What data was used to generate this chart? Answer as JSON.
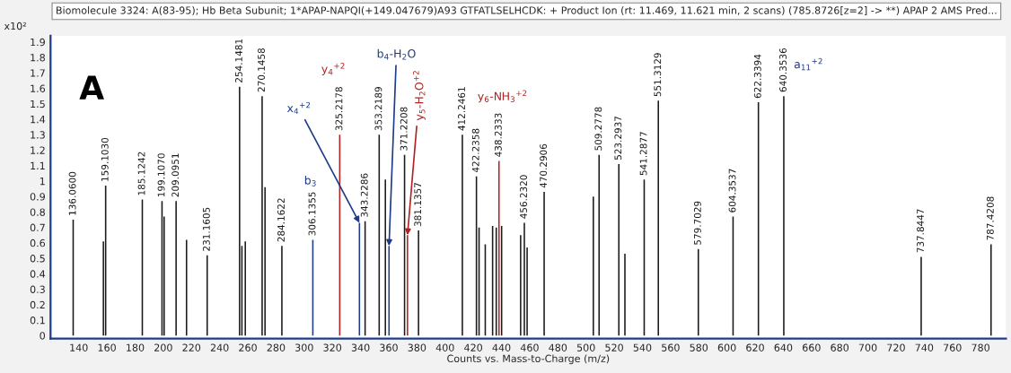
{
  "chart_data": {
    "type": "bar",
    "title": "Biomolecule 3324: A(83-95); Hb Beta Subunit; 1*APAP-NAPQI(+149.047679)A93 GTFATLSELHCDK: + Product Ion (rt: 11.469, 11.621 min, 2 scans) (785.8726[z=2] -> **) APAP 2 AMS Pred...",
    "xlabel": "Counts vs. Mass-to-Charge (m/z)",
    "ylabel": "x10²",
    "x": [
      136.06,
      157.5,
      159.103,
      185.1242,
      199.107,
      200.6,
      209.0951,
      216.5,
      231.1605,
      254.1481,
      255.8,
      258.2,
      270.1458,
      272.2,
      284.1622,
      306.1355,
      325.2178,
      339.2,
      343.2286,
      353.2189,
      357.6,
      360.2,
      371.2208,
      373.3,
      381.1357,
      412.2461,
      422.2358,
      424.1,
      428.5,
      433.7,
      436.3,
      438.2333,
      440.1,
      453.6,
      456.232,
      458.2,
      470.2906,
      505.2,
      509.2778,
      523.2937,
      527.6,
      541.2877,
      551.3129,
      579.7029,
      604.3537,
      622.3394,
      640.3536,
      737.8447,
      787.4208
    ],
    "values": [
      0.75,
      0.61,
      0.97,
      0.88,
      0.87,
      0.77,
      0.87,
      0.62,
      0.52,
      1.61,
      0.58,
      0.61,
      1.55,
      0.96,
      0.58,
      0.62,
      1.3,
      0.73,
      0.74,
      1.3,
      1.01,
      0.58,
      1.17,
      0.65,
      0.68,
      1.3,
      1.03,
      0.7,
      0.59,
      0.71,
      0.7,
      1.13,
      0.71,
      0.65,
      0.73,
      0.57,
      0.93,
      0.9,
      1.17,
      1.11,
      0.53,
      1.01,
      1.52,
      0.56,
      0.77,
      1.51,
      1.55,
      0.51,
      0.59
    ],
    "colors": [
      "#1a1a1a",
      "#1a1a1a",
      "#1a1a1a",
      "#1a1a1a",
      "#1a1a1a",
      "#1a1a1a",
      "#1a1a1a",
      "#1a1a1a",
      "#1a1a1a",
      "#1a1a1a",
      "#1a1a1a",
      "#1a1a1a",
      "#1a1a1a",
      "#1a1a1a",
      "#1a1a1a",
      "#1f3c88",
      "#b22222",
      "#1f3c88",
      "#1a1a1a",
      "#1a1a1a",
      "#1a1a1a",
      "#1f3c88",
      "#1a1a1a",
      "#b22222",
      "#1a1a1a",
      "#1a1a1a",
      "#1a1a1a",
      "#1a1a1a",
      "#1a1a1a",
      "#1a1a1a",
      "#1a1a1a",
      "#b22222",
      "#1a1a1a",
      "#1a1a1a",
      "#1a1a1a",
      "#1a1a1a",
      "#1a1a1a",
      "#1a1a1a",
      "#1a1a1a",
      "#1a1a1a",
      "#1a1a1a",
      "#1a1a1a",
      "#1a1a1a",
      "#1a1a1a",
      "#1a1a1a",
      "#1a1a1a",
      "#1a1a1a",
      "#1a1a1a",
      "#1a1a1a"
    ],
    "annotations": [
      "A",
      "y$_{4}$$^{+2}$",
      {
        "text": "x$_{4}$$^{+2}$",
        "x": 339.2,
        "y": 0.73
      },
      "b$_{3}$",
      {
        "text": "b$_{4}$-H$_{2}$O",
        "x": 360.2,
        "y": 0.58
      },
      {
        "text": "y$_{5}$-H$_{2}$O$^{+2}$",
        "x": 373.3,
        "y": 0.65
      },
      "y$_{6}$-NH$_{3}$$^{+2}$",
      "a$_{11}$$^{+2}$",
      {
        "text": "136.0600",
        "x": 136.06,
        "y": 0.75
      },
      {
        "text": "159.1030",
        "x": 159.103,
        "y": 0.97
      },
      {
        "text": "185.1242",
        "x": 185.1242,
        "y": 0.88
      },
      {
        "text": "199.1070",
        "x": 199.107,
        "y": 0.87
      },
      {
        "text": "209.0951",
        "x": 209.0951,
        "y": 0.87
      },
      {
        "text": "231.1605",
        "x": 231.1605,
        "y": 0.52
      },
      {
        "text": "254.1481",
        "x": 254.1481,
        "y": 1.61
      },
      {
        "text": "270.1458",
        "x": 270.1458,
        "y": 1.55
      },
      {
        "text": "284.1622",
        "x": 284.1622,
        "y": 0.58
      },
      {
        "text": "306.1355",
        "x": 306.1355,
        "y": 0.62
      },
      {
        "text": "325.2178",
        "x": 325.2178,
        "y": 1.3
      },
      {
        "text": "343.2286",
        "x": 343.2286,
        "y": 0.74
      },
      {
        "text": "353.2189",
        "x": 353.2189,
        "y": 1.3
      },
      {
        "text": "371.2208",
        "x": 371.2208,
        "y": 1.17
      },
      {
        "text": "381.1357",
        "x": 381.1357,
        "y": 0.68
      },
      {
        "text": "412.2461",
        "x": 412.2461,
        "y": 1.3
      },
      {
        "text": "422.2358",
        "x": 422.2358,
        "y": 1.03
      },
      {
        "text": "438.2333",
        "x": 438.2333,
        "y": 1.13
      },
      {
        "text": "456.2320",
        "x": 456.232,
        "y": 0.73
      },
      {
        "text": "470.2906",
        "x": 470.2906,
        "y": 0.93
      },
      {
        "text": "509.2778",
        "x": 509.2778,
        "y": 1.17
      },
      {
        "text": "523.2937",
        "x": 523.2937,
        "y": 1.11
      },
      {
        "text": "541.2877",
        "x": 541.2877,
        "y": 1.01
      },
      {
        "text": "551.3129",
        "x": 551.3129,
        "y": 1.52
      },
      {
        "text": "579.7029",
        "x": 579.7029,
        "y": 0.56
      },
      {
        "text": "604.3537",
        "x": 604.3537,
        "y": 0.77
      },
      {
        "text": "622.3394",
        "x": 622.3394,
        "y": 1.51
      },
      {
        "text": "640.3536",
        "x": 640.3536,
        "y": 1.55
      },
      {
        "text": "737.8447",
        "x": 737.8447,
        "y": 0.51
      },
      {
        "text": "787.4208",
        "x": 787.4208,
        "y": 0.59
      }
    ],
    "xlim": [
      120,
      798
    ],
    "ylim": [
      -0.02,
      1.94
    ],
    "xticks": [
      140,
      160,
      180,
      200,
      220,
      240,
      260,
      280,
      300,
      320,
      340,
      360,
      380,
      400,
      420,
      440,
      460,
      480,
      500,
      520,
      540,
      560,
      580,
      600,
      620,
      640,
      660,
      680,
      700,
      720,
      740,
      760,
      780
    ],
    "yticks": [
      0,
      0.1,
      0.2,
      0.3,
      0.4,
      0.5,
      0.6,
      0.7,
      0.8,
      0.9,
      1,
      1.1,
      1.2,
      1.3,
      1.4,
      1.5,
      1.6,
      1.7,
      1.8,
      1.9
    ],
    "grid": false,
    "legend": false
  }
}
